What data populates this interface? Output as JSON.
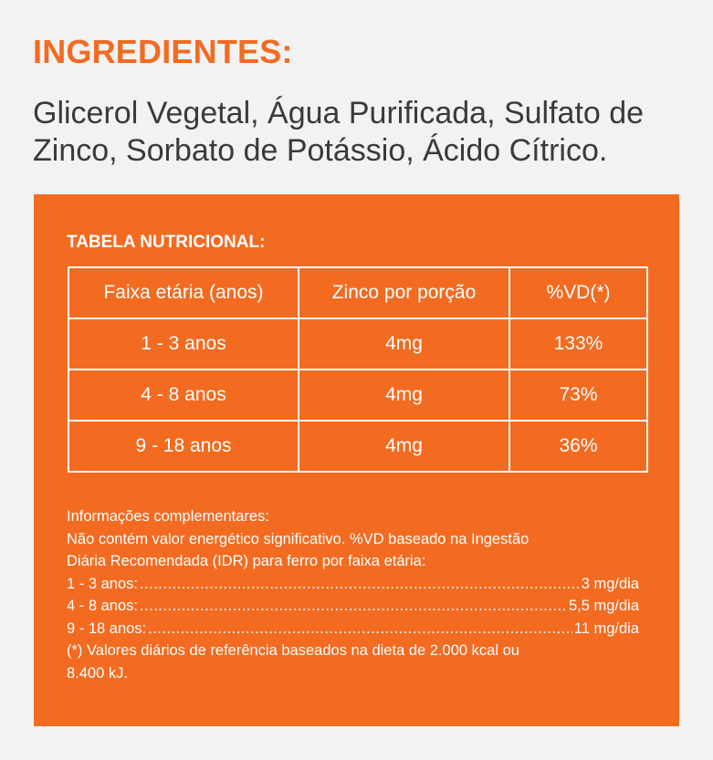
{
  "ingredients": {
    "title": "INGREDIENTES:",
    "text": "Glicerol Vegetal, Água Purificada, Sulfato de Zinco, Sorbato de Potássio, Ácido Cítrico."
  },
  "nutrition": {
    "title": "TABELA NUTRICIONAL:",
    "headers": [
      "Faixa etária (anos)",
      "Zinco por porção",
      "%VD(*)"
    ],
    "rows": [
      [
        "1 - 3 anos",
        "4mg",
        "133%"
      ],
      [
        "4 - 8 anos",
        "4mg",
        "73%"
      ],
      [
        "9 - 18 anos",
        "4mg",
        "36%"
      ]
    ]
  },
  "notes": {
    "heading": "Informações complementares:",
    "line1": "Não contém valor energético significativo. %VD baseado na Ingestão",
    "line2": "Diária Recomendada (IDR) para ferro por faixa etária:",
    "idr": [
      {
        "label": "1 - 3 anos:",
        "value": "3 mg/dia"
      },
      {
        "label": "4 - 8 anos:",
        "value": "5,5 mg/dia"
      },
      {
        "label": "9 - 18 anos:",
        "value": "11 mg/dia"
      }
    ],
    "footnote1": "(*) Valores diários de referência baseados na dieta de 2.000 kcal ou",
    "footnote2": "8.400 kJ."
  },
  "colors": {
    "accent": "#f26b21",
    "body_text": "#3a3a3a",
    "background": "#f2f2f2"
  }
}
